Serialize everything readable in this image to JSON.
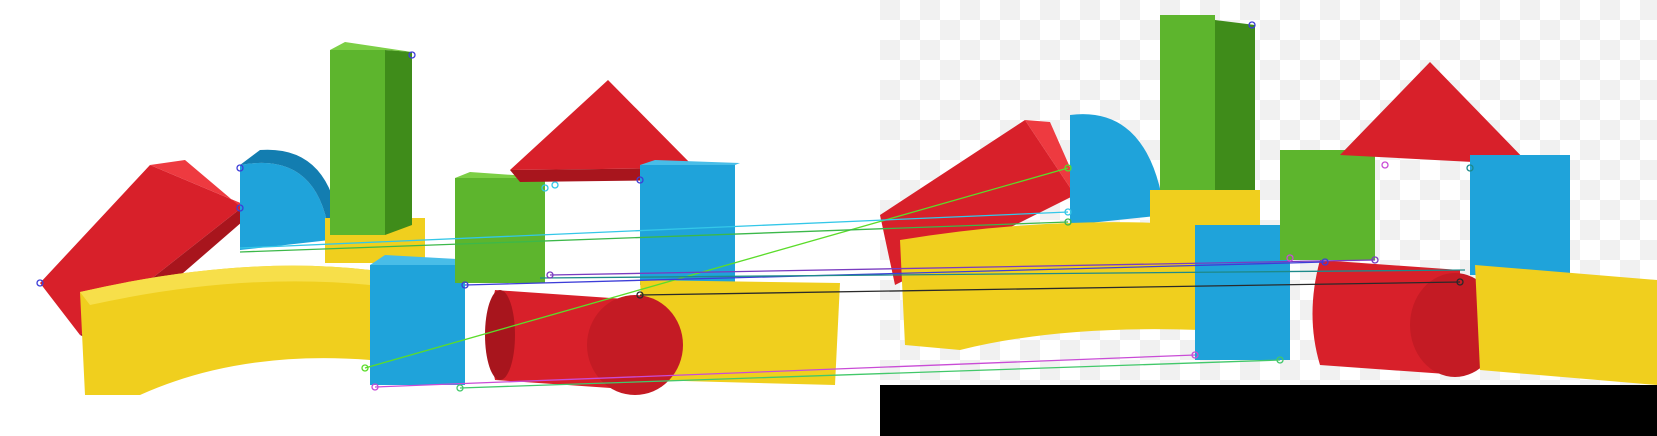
{
  "scene": {
    "description_name": "toy-blocks-feature-matching",
    "left_image_name": "blocks-view-left",
    "right_image_name": "blocks-view-right",
    "colors": {
      "red": "#d8202a",
      "red_dark": "#a8151d",
      "red_light": "#ee3a40",
      "blue": "#1fa3da",
      "blue_dark": "#137db0",
      "green": "#5db52d",
      "green_dark": "#3f8c1a",
      "yellow": "#f0cf1e",
      "yellow_dark": "#c9a50f",
      "background": "#ffffff",
      "checker": "#eeeeee",
      "black_band": "#000000"
    }
  },
  "matches": [
    {
      "color": "#5bdc2a"
    },
    {
      "color": "#33c7e8"
    },
    {
      "color": "#3cb84a"
    },
    {
      "color": "#3d3dd8"
    },
    {
      "color": "#7a3cc0"
    },
    {
      "color": "#2a2a2a"
    },
    {
      "color": "#c94cd6"
    },
    {
      "color": "#42c86a"
    },
    {
      "color": "#1e8a8a"
    }
  ]
}
